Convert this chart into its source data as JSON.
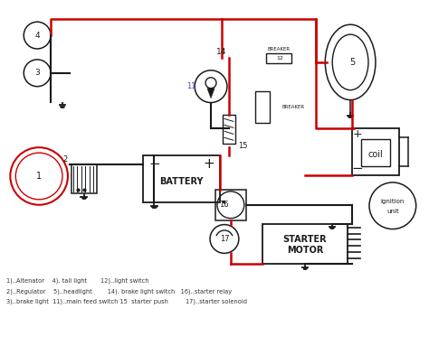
{
  "bg_color": "#ffffff",
  "red": "#cc0000",
  "black": "#1a1a1a",
  "blue": "#4444cc",
  "legend": [
    "1)..Altenator    4). tail light       12)..light switch",
    "2)..Regulator    5)..headlight        14). brake light switch   16)..starter relay",
    "3)..brake light  11)..main feed switch 15  starter push         17)..starter solenoid"
  ]
}
